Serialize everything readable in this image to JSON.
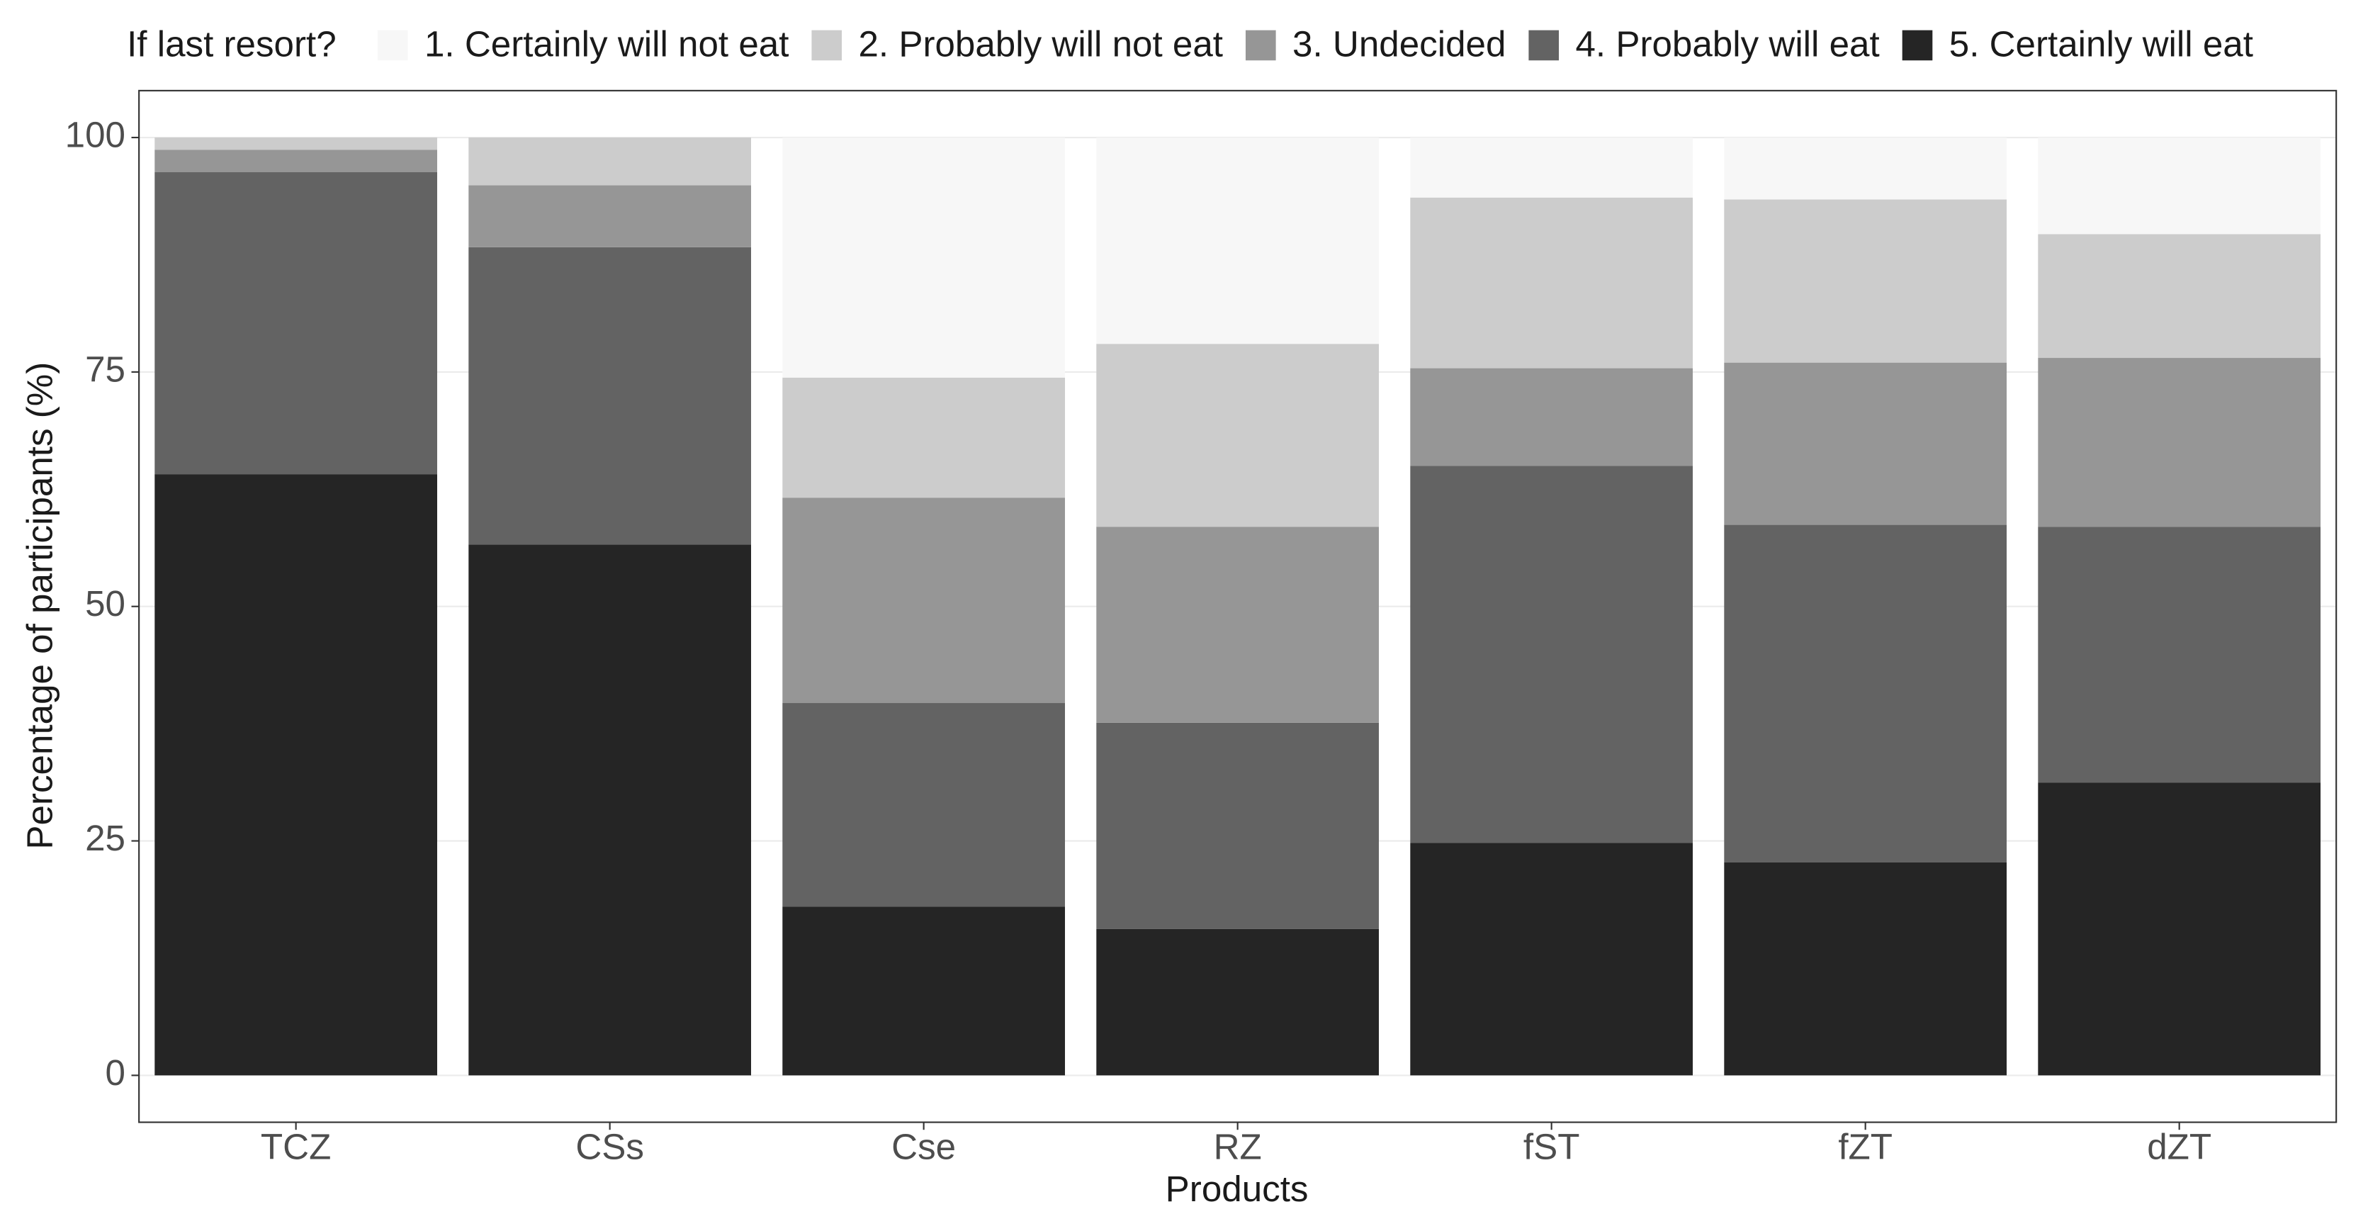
{
  "chart_data": {
    "type": "stacked_bar",
    "legend_title": "If last resort?",
    "x_label": "Products",
    "y_label": "Percentage of participants (%)",
    "categories": [
      "TCZ",
      "CSs",
      "Cse",
      "RZ",
      "fST",
      "fZT",
      "dZT"
    ],
    "series": [
      {
        "name": "1. Certainly will not eat",
        "color": "#f7f7f7",
        "values": [
          0,
          0,
          25.6,
          22.0,
          6.4,
          6.6,
          10.3
        ]
      },
      {
        "name": "2. Probably will not eat",
        "color": "#cccccc",
        "values": [
          1.3,
          5.1,
          12.8,
          19.5,
          18.2,
          17.4,
          13.2
        ]
      },
      {
        "name": "3. Undecided",
        "color": "#969696",
        "values": [
          2.4,
          6.6,
          21.9,
          20.9,
          10.4,
          17.3,
          18.0
        ]
      },
      {
        "name": "4. Probably will eat",
        "color": "#636363",
        "values": [
          32.2,
          31.7,
          21.7,
          22.0,
          40.2,
          36.0,
          27.3
        ]
      },
      {
        "name": "5. Certainly will eat",
        "color": "#252525",
        "values": [
          64.1,
          56.6,
          18.0,
          15.6,
          24.8,
          22.7,
          31.2
        ]
      }
    ],
    "ylim": [
      -5,
      105
    ],
    "yticks": [
      0,
      25,
      50,
      75,
      100
    ],
    "grid": true,
    "legend_position": "top"
  }
}
